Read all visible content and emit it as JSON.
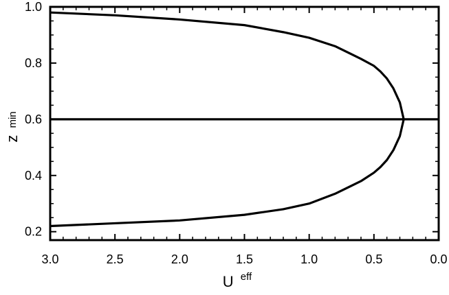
{
  "chart_data": {
    "type": "line",
    "title": "",
    "xlabel": {
      "base": "U",
      "superscript": "eff"
    },
    "ylabel": {
      "base": "z",
      "subscript": "min"
    },
    "xlim": [
      3.0,
      0.0
    ],
    "ylim": [
      0.17,
      1.0
    ],
    "x_ticks": [
      "3.0",
      "2.5",
      "2.0",
      "1.5",
      "1.0",
      "0.5",
      "0.0"
    ],
    "x_tick_values": [
      3.0,
      2.5,
      2.0,
      1.5,
      1.0,
      0.5,
      0.0
    ],
    "y_ticks": [
      "0.2",
      "0.4",
      "0.6",
      "0.8",
      "1.0"
    ],
    "y_tick_values": [
      0.2,
      0.4,
      0.6,
      0.8,
      1.0
    ],
    "grid": false,
    "series": [
      {
        "x": [
          3.0,
          2.5,
          2.0,
          1.5,
          1.2,
          1.0,
          0.8,
          0.6,
          0.5,
          0.45,
          0.4,
          0.35,
          0.3,
          0.27
        ],
        "y": [
          0.98,
          0.97,
          0.955,
          0.935,
          0.91,
          0.89,
          0.86,
          0.815,
          0.79,
          0.77,
          0.745,
          0.71,
          0.66,
          0.6
        ]
      },
      {
        "x": [
          0.27,
          0.3,
          0.35,
          0.4,
          0.45,
          0.5,
          0.6,
          0.8,
          1.0,
          1.2,
          1.5,
          2.0,
          2.5,
          3.0
        ],
        "y": [
          0.6,
          0.54,
          0.49,
          0.455,
          0.43,
          0.41,
          0.38,
          0.335,
          0.3,
          0.28,
          0.26,
          0.24,
          0.23,
          0.22
        ]
      },
      {
        "x": [
          3.0,
          0.0
        ],
        "y": [
          0.6,
          0.6
        ]
      }
    ]
  }
}
